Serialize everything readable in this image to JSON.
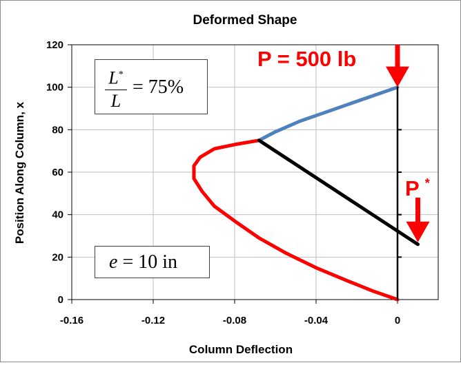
{
  "chart_data": {
    "type": "line",
    "title": "Deformed Shape",
    "xlabel": "Column Deflection",
    "ylabel": "Position Along Column, x",
    "xlim": [
      -0.16,
      0.02
    ],
    "ylim": [
      0,
      120
    ],
    "xticks": [
      -0.16,
      -0.12,
      -0.08,
      -0.04,
      0
    ],
    "xtick_labels": [
      "-0.16",
      "-0.12",
      "-0.08",
      "-0.04",
      "0"
    ],
    "yticks": [
      0,
      20,
      40,
      60,
      80,
      100,
      120
    ],
    "ytick_labels": [
      "0",
      "20",
      "40",
      "60",
      "80",
      "100",
      "120"
    ],
    "grid": true,
    "legend": "none",
    "series": [
      {
        "color": "#ff0000",
        "x": [
          0,
          -0.012,
          -0.025,
          -0.04,
          -0.055,
          -0.068,
          -0.08,
          -0.09,
          -0.096,
          -0.1,
          -0.1,
          -0.097,
          -0.09,
          -0.08,
          -0.068
        ],
        "y": [
          0,
          4,
          9,
          15,
          22,
          29,
          37,
          44,
          51,
          57,
          63,
          67,
          71,
          73,
          75
        ]
      },
      {
        "color": "#4f81bd",
        "x": [
          -0.068,
          -0.06,
          -0.048,
          -0.036,
          -0.024,
          -0.012,
          0
        ],
        "y": [
          75,
          79,
          84,
          88,
          92,
          96,
          100
        ]
      },
      {
        "color": "#000000",
        "x": [
          -0.068,
          0.01
        ],
        "y": [
          75,
          26
        ]
      },
      {
        "color": "#000000",
        "x": [
          0,
          0
        ],
        "y": [
          0,
          100
        ]
      }
    ],
    "annotations": {
      "load_label": "P = 500 lb",
      "pstar_label": "P",
      "pstar_sup": "*",
      "ratio_num": "L",
      "ratio_num_sup": "*",
      "ratio_den": "L",
      "ratio_value": "= 75%",
      "ecc_var": "e",
      "ecc_value": "= 10 in"
    },
    "annotation_color": "#ff0000",
    "arrows": [
      {
        "at_x": 0,
        "from_y": 120,
        "to_y": 100
      },
      {
        "at_x": 0.01,
        "from_y": 48,
        "to_y": 27
      }
    ]
  }
}
